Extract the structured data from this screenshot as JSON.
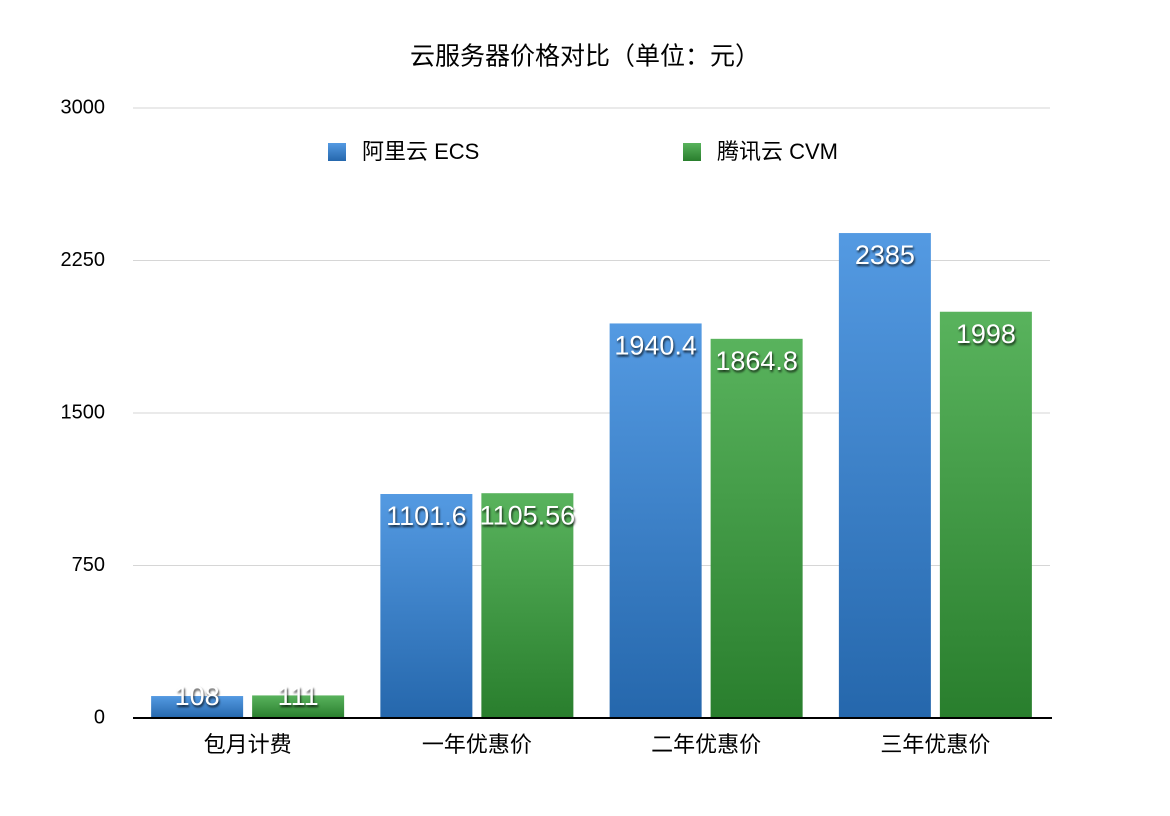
{
  "chart_data": {
    "type": "bar",
    "title": "云服务器价格对比（单位：元）",
    "categories": [
      "包月计费",
      "一年优惠价",
      "二年优惠价",
      "三年优惠价"
    ],
    "series": [
      {
        "name": "阿里云 ECS",
        "color": "#2f84dc",
        "values": [
          108,
          1101.6,
          1940.4,
          2385
        ]
      },
      {
        "name": "腾讯云 CVM",
        "color": "#34a23a",
        "values": [
          111,
          1105.56,
          1864.8,
          1998
        ]
      }
    ],
    "ylim": [
      0,
      3000
    ],
    "yticks": [
      0,
      750,
      1500,
      2250,
      3000
    ],
    "grid": true,
    "legend": "top"
  }
}
